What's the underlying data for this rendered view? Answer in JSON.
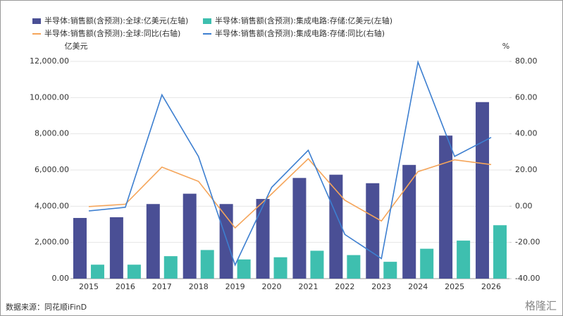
{
  "chart_data": {
    "type": "bar-line",
    "categories": [
      "2015",
      "2016",
      "2017",
      "2018",
      "2019",
      "2020",
      "2021",
      "2022",
      "2023",
      "2024",
      "2025",
      "2026"
    ],
    "series": [
      {
        "name": "半导体:销售额(含预测):全球:亿美元(左轴)",
        "color": "#4a4f95",
        "type": "bar",
        "axis": "y",
        "values": [
          3350,
          3390,
          4120,
          4690,
          4120,
          4400,
          5560,
          5740,
          5270,
          6280,
          7900,
          9750
        ]
      },
      {
        "name": "半导体:销售额(含预测):集成电路:存储:亿美元(左轴)",
        "color": "#3ebfaf",
        "type": "bar",
        "axis": "y",
        "values": [
          770,
          770,
          1240,
          1580,
          1060,
          1180,
          1540,
          1300,
          930,
          1650,
          2100,
          2950
        ]
      },
      {
        "name": "半导体:销售额(含预测):全球:同比(右轴)",
        "color": "#f5a55a",
        "type": "line",
        "axis": "y2",
        "values": [
          -0.2,
          1.1,
          21.6,
          13.7,
          -12,
          6.8,
          26.2,
          3.3,
          -8.2,
          19.1,
          25.6,
          23
        ]
      },
      {
        "name": "半导体:销售额(含预测):集成电路:存储:同比(右轴)",
        "color": "#3d7fd0",
        "type": "line",
        "axis": "y2",
        "values": [
          -2.6,
          -0.6,
          61.5,
          27.4,
          -32.5,
          10.4,
          30.9,
          -15.6,
          -28.9,
          79.6,
          27.5,
          38
        ]
      }
    ],
    "y_unit": "亿美元",
    "y2_unit": "%",
    "ylim": [
      0,
      12000
    ],
    "yticks": [
      {
        "value": 0,
        "label": "0.00"
      },
      {
        "value": 2000,
        "label": "2,000.00"
      },
      {
        "value": 4000,
        "label": "4,000.00"
      },
      {
        "value": 6000,
        "label": "6,000.00"
      },
      {
        "value": 8000,
        "label": "8,000.00"
      },
      {
        "value": 10000,
        "label": "10,000.00"
      },
      {
        "value": 12000,
        "label": "12,000.00"
      }
    ],
    "y2lim": [
      -40,
      80
    ],
    "y2ticks": [
      {
        "value": -40,
        "label": "-40.00"
      },
      {
        "value": -20,
        "label": "-20.00"
      },
      {
        "value": 0,
        "label": "0.00"
      },
      {
        "value": 20,
        "label": "20.00"
      },
      {
        "value": 40,
        "label": "40.00"
      },
      {
        "value": 60,
        "label": "60.00"
      },
      {
        "value": 80,
        "label": "80.00"
      }
    ],
    "grid": true,
    "source": "数据来源：同花顺iFinD",
    "watermark": "格隆汇"
  }
}
